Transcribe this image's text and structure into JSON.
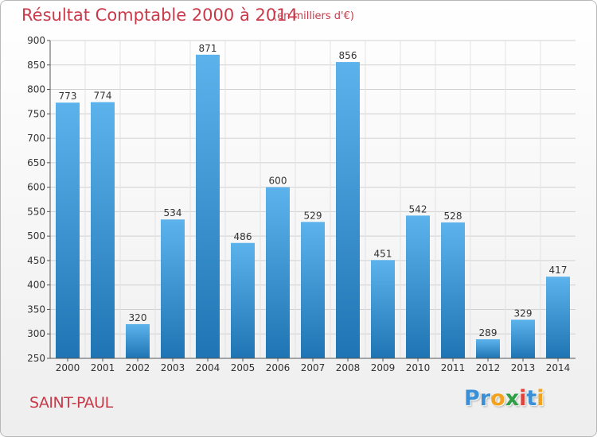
{
  "chart_data": {
    "type": "bar",
    "title": "Résultat Comptable 2000 à 2014",
    "subtitle": "(en milliers d'€)",
    "xlabel": "",
    "ylabel": "",
    "categories": [
      "2000",
      "2001",
      "2002",
      "2003",
      "2004",
      "2005",
      "2006",
      "2007",
      "2008",
      "2009",
      "2010",
      "2011",
      "2012",
      "2013",
      "2014"
    ],
    "values": [
      773,
      774,
      320,
      534,
      871,
      486,
      600,
      529,
      856,
      451,
      542,
      528,
      289,
      329,
      417
    ],
    "ylim": [
      250,
      900
    ],
    "yticks": [
      250,
      300,
      350,
      400,
      450,
      500,
      550,
      600,
      650,
      700,
      750,
      800,
      850,
      900
    ],
    "grid": true,
    "legend": "none"
  },
  "footer": {
    "commune": "SAINT-PAUL",
    "brand_letters": [
      {
        "ch": "P",
        "color": "#3a8fd6"
      },
      {
        "ch": "r",
        "color": "#3a8fd6"
      },
      {
        "ch": "o",
        "color": "#f2a21c"
      },
      {
        "ch": "x",
        "color": "#2f9f47"
      },
      {
        "ch": "i",
        "color": "#e2413a"
      },
      {
        "ch": "t",
        "color": "#3a8fd6"
      },
      {
        "ch": "i",
        "color": "#f2a21c"
      }
    ]
  },
  "colors": {
    "title": "#c83a4a",
    "bar_top": "#5cb3ec",
    "bar_bottom": "#1f74b3",
    "grid": "#d0d0d0"
  }
}
